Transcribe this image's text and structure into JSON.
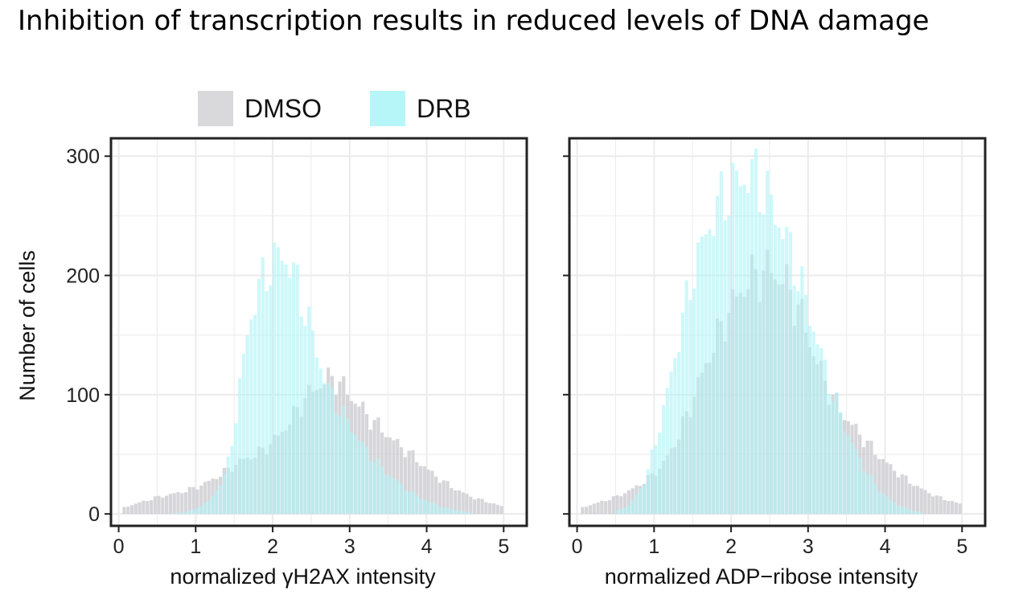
{
  "title": "Inhibition of transcription results in reduced levels of DNA damage",
  "legend": {
    "items": [
      {
        "label": "DMSO",
        "color": "#d9d9dc"
      },
      {
        "label": "DRB",
        "color": "#b6f5f8"
      }
    ]
  },
  "chart_data": [
    {
      "type": "histogram",
      "xlabel": "normalized γH2AX intensity",
      "ylabel": "Number of cells",
      "xlim": [
        -0.1,
        5.3
      ],
      "ylim": [
        -10,
        315
      ],
      "xticks": [
        0,
        1,
        2,
        3,
        4,
        5
      ],
      "yticks": [
        0,
        100,
        200,
        300
      ],
      "show_y_tick_labels": true,
      "grid": true,
      "series": [
        {
          "name": "DMSO",
          "color": "#cfcfd3",
          "points": [
            [
              0.05,
              5
            ],
            [
              0.3,
              10
            ],
            [
              0.5,
              14
            ],
            [
              0.8,
              18
            ],
            [
              1.0,
              22
            ],
            [
              1.2,
              28
            ],
            [
              1.4,
              36
            ],
            [
              1.6,
              45
            ],
            [
              1.8,
              50
            ],
            [
              2.0,
              60
            ],
            [
              2.2,
              75
            ],
            [
              2.4,
              95
            ],
            [
              2.6,
              108
            ],
            [
              2.8,
              115
            ],
            [
              3.0,
              100
            ],
            [
              3.2,
              85
            ],
            [
              3.4,
              72
            ],
            [
              3.6,
              60
            ],
            [
              3.8,
              50
            ],
            [
              4.0,
              38
            ],
            [
              4.2,
              28
            ],
            [
              4.4,
              20
            ],
            [
              4.6,
              14
            ],
            [
              4.8,
              10
            ],
            [
              5.0,
              6
            ]
          ]
        },
        {
          "name": "DRB",
          "color": "#aef3f6",
          "points": [
            [
              0.6,
              0
            ],
            [
              0.8,
              1
            ],
            [
              1.0,
              4
            ],
            [
              1.2,
              12
            ],
            [
              1.4,
              35
            ],
            [
              1.5,
              70
            ],
            [
              1.6,
              120
            ],
            [
              1.7,
              160
            ],
            [
              1.8,
              185
            ],
            [
              1.9,
              200
            ],
            [
              2.0,
              210
            ],
            [
              2.1,
              218
            ],
            [
              2.2,
              212
            ],
            [
              2.3,
              198
            ],
            [
              2.4,
              175
            ],
            [
              2.5,
              155
            ],
            [
              2.6,
              130
            ],
            [
              2.7,
              108
            ],
            [
              2.8,
              95
            ],
            [
              3.0,
              75
            ],
            [
              3.2,
              55
            ],
            [
              3.4,
              40
            ],
            [
              3.6,
              28
            ],
            [
              3.8,
              18
            ],
            [
              4.0,
              11
            ],
            [
              4.2,
              6
            ],
            [
              4.4,
              3
            ],
            [
              4.6,
              1
            ]
          ]
        }
      ]
    },
    {
      "type": "histogram",
      "xlabel": "normalized ADP−ribose intensity",
      "ylabel": "",
      "xlim": [
        -0.1,
        5.3
      ],
      "ylim": [
        -10,
        315
      ],
      "xticks": [
        0,
        1,
        2,
        3,
        4,
        5
      ],
      "yticks": [
        0,
        100,
        200,
        300
      ],
      "show_y_tick_labels": false,
      "grid": true,
      "series": [
        {
          "name": "DMSO",
          "color": "#cfcfd3",
          "points": [
            [
              0.05,
              5
            ],
            [
              0.3,
              10
            ],
            [
              0.5,
              14
            ],
            [
              0.7,
              20
            ],
            [
              0.9,
              28
            ],
            [
              1.1,
              40
            ],
            [
              1.3,
              62
            ],
            [
              1.5,
              95
            ],
            [
              1.7,
              130
            ],
            [
              1.9,
              160
            ],
            [
              2.1,
              185
            ],
            [
              2.3,
              200
            ],
            [
              2.5,
              205
            ],
            [
              2.7,
              195
            ],
            [
              2.9,
              170
            ],
            [
              3.1,
              130
            ],
            [
              3.3,
              100
            ],
            [
              3.5,
              80
            ],
            [
              3.7,
              65
            ],
            [
              3.9,
              50
            ],
            [
              4.1,
              38
            ],
            [
              4.3,
              28
            ],
            [
              4.5,
              20
            ],
            [
              4.7,
              14
            ],
            [
              4.9,
              10
            ],
            [
              5.0,
              8
            ]
          ]
        },
        {
          "name": "DRB",
          "color": "#aef3f6",
          "points": [
            [
              0.5,
              2
            ],
            [
              0.7,
              8
            ],
            [
              0.9,
              30
            ],
            [
              1.1,
              80
            ],
            [
              1.3,
              140
            ],
            [
              1.5,
              200
            ],
            [
              1.7,
              240
            ],
            [
              1.9,
              265
            ],
            [
              2.1,
              280
            ],
            [
              2.3,
              285
            ],
            [
              2.5,
              262
            ],
            [
              2.7,
              235
            ],
            [
              2.9,
              195
            ],
            [
              3.1,
              150
            ],
            [
              3.3,
              105
            ],
            [
              3.5,
              70
            ],
            [
              3.7,
              42
            ],
            [
              3.9,
              22
            ],
            [
              4.1,
              10
            ],
            [
              4.3,
              4
            ],
            [
              4.5,
              1
            ]
          ]
        }
      ]
    }
  ]
}
